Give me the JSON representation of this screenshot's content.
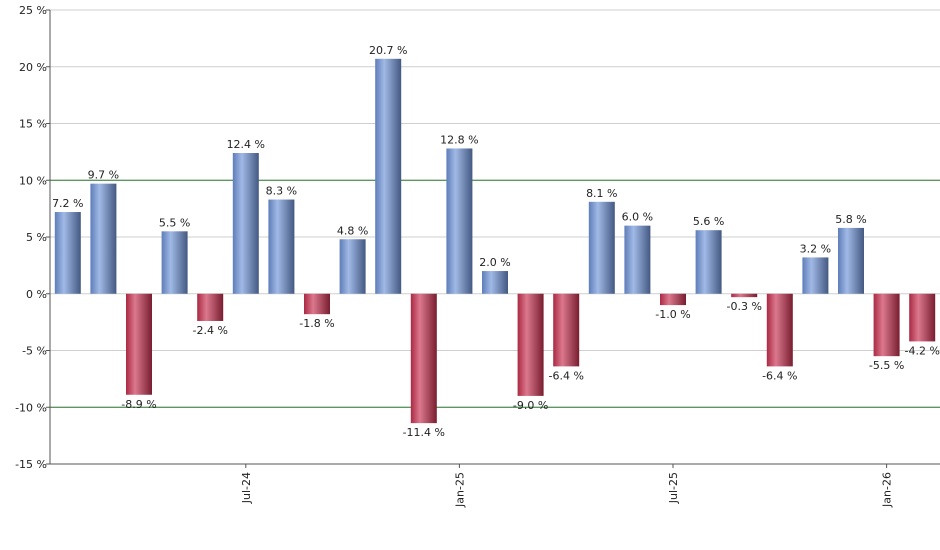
{
  "chart_data": {
    "type": "bar",
    "categories": [
      null,
      null,
      null,
      null,
      null,
      "Jul-24",
      null,
      null,
      null,
      null,
      null,
      "Jan-25",
      null,
      null,
      null,
      null,
      null,
      "Jul-25",
      null,
      null,
      null,
      null,
      null,
      "Jan-26",
      null
    ],
    "values": [
      7.2,
      9.7,
      -8.9,
      5.5,
      -2.4,
      12.4,
      8.3,
      -1.8,
      4.8,
      20.7,
      -11.4,
      12.8,
      2.0,
      -9.0,
      -6.4,
      8.1,
      6.0,
      -1.0,
      5.6,
      -0.3,
      -6.4,
      3.2,
      5.8,
      -5.5,
      -4.2
    ],
    "value_labels": [
      "7.2 %",
      "9.7 %",
      "-8.9 %",
      "5.5 %",
      "-2.4 %",
      "12.4 %",
      "8.3 %",
      "-1.8 %",
      "4.8 %",
      "20.7 %",
      "-11.4 %",
      "12.8 %",
      "2.0 %",
      "-9.0 %",
      "-6.4 %",
      "8.1 %",
      "6.0 %",
      "-1.0 %",
      "5.6 %",
      "-0.3 %",
      "-6.4 %",
      "3.2 %",
      "5.8 %",
      "-5.5 %",
      "-4.2 %"
    ],
    "positive_color": "#6f94d8",
    "negative_color": "#c8304f",
    "ylim": [
      -15,
      25
    ],
    "yticks": [
      {
        "value": -15,
        "label": "-15 %"
      },
      {
        "value": -10,
        "label": "-10 %"
      },
      {
        "value": -5,
        "label": "-5 %"
      },
      {
        "value": 0,
        "label": "0 %"
      },
      {
        "value": 5,
        "label": "5 %"
      },
      {
        "value": 10,
        "label": "10 %"
      },
      {
        "value": 15,
        "label": "15 %"
      },
      {
        "value": 20,
        "label": "20 %"
      },
      {
        "value": 25,
        "label": "25 %"
      }
    ],
    "reference_lines": [
      10,
      -10
    ],
    "grid": true
  }
}
